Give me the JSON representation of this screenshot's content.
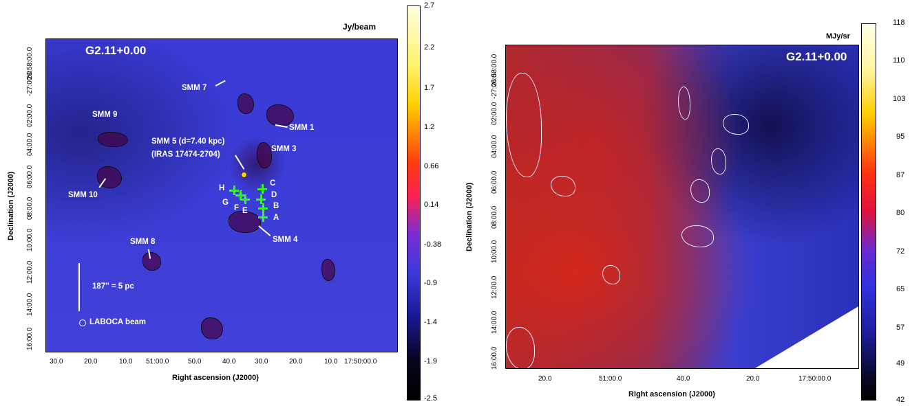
{
  "left_panel": {
    "unit_label": "Jy/beam",
    "title": "G2.11+0.00",
    "sources": {
      "smm7": "SMM 7",
      "smm9": "SMM 9",
      "smm1": "SMM 1",
      "smm5": "SMM 5 (d=7.40 kpc)",
      "iras": "(IRAS 17474-2704)",
      "smm3": "SMM 3",
      "smm10": "SMM 10",
      "smm4": "SMM 4",
      "smm8": "SMM 8"
    },
    "markers": {
      "A": "A",
      "B": "B",
      "C": "C",
      "D": "D",
      "E": "E",
      "F": "F",
      "G": "G",
      "H": "H"
    },
    "scale_label": "187'' = 5 pc",
    "beam_label": "LABOCA beam",
    "x_ticks": [
      "30.0",
      "20.0",
      "10.0",
      "51:00.0",
      "50.0",
      "40.0",
      "30.0",
      "20.0",
      "10.0",
      "17:50:00.0"
    ],
    "y_ticks": [
      "16:00.0",
      "14:00.0",
      "12:00.0",
      "10:00.0",
      "08:00.0",
      "06:00.0",
      "04:00.0",
      "02:00.0",
      "-27:00:0",
      "26:58:00.0"
    ],
    "xlabel": "Right ascension (J2000)",
    "ylabel": "Declination (J2000)",
    "colorbar_ticks": [
      "2.7",
      "2.2",
      "1.7",
      "1.2",
      "0.66",
      "0.14",
      "-0.38",
      "-0.9",
      "-1.4",
      "-1.9",
      "-2.5"
    ]
  },
  "right_panel": {
    "unit_label": "MJy/sr",
    "title": "G2.11+0.00",
    "x_ticks": [
      "20.0",
      "51:00.0",
      "40.0",
      "20.0",
      "17:50:00.0"
    ],
    "y_ticks": [
      "16:00.0",
      "14:00.0",
      "12:00.0",
      "10:00.0",
      "08:00.0",
      "06:00.0",
      "04:00.0",
      "02:00.0",
      "-27:00:0",
      "26:58:00.0"
    ],
    "xlabel": "Right ascension (J2000)",
    "ylabel": "Declination (J2000)",
    "colorbar_ticks": [
      "118",
      "110",
      "103",
      "95",
      "87",
      "80",
      "72",
      "65",
      "57",
      "49",
      "42"
    ]
  }
}
